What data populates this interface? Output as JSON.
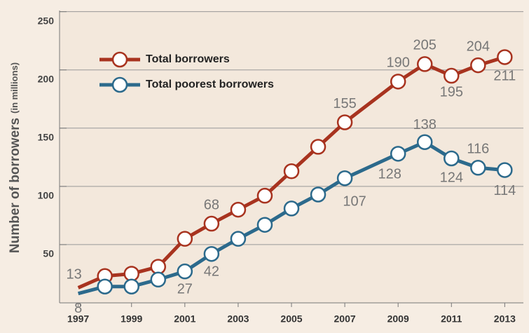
{
  "chart_data": {
    "type": "line",
    "ylabel": "Number of borrowers",
    "ylabel_unit": "(in millions)",
    "x": [
      1997,
      1998,
      1999,
      2000,
      2001,
      2002,
      2003,
      2004,
      2005,
      2006,
      2007,
      2009,
      2010,
      2011,
      2012,
      2013
    ],
    "series": [
      {
        "name": "Total borrowers",
        "color": "#a8331f",
        "values": [
          13,
          23,
          25,
          31,
          55,
          68,
          80,
          92,
          113,
          134,
          155,
          190,
          205,
          195,
          204,
          211
        ],
        "value_labels": [
          "13",
          null,
          null,
          null,
          null,
          "68",
          null,
          null,
          null,
          null,
          "155",
          "190",
          "205",
          "195",
          "204",
          "211"
        ]
      },
      {
        "name": "Total poorest borrowers",
        "color": "#2c6a8c",
        "values": [
          8,
          14,
          14,
          20,
          27,
          42,
          55,
          67,
          81,
          93,
          107,
          128,
          138,
          124,
          116,
          114
        ],
        "value_labels": [
          "8",
          "",
          null,
          null,
          "27",
          "42",
          null,
          null,
          null,
          null,
          "107",
          "128",
          "138",
          "124",
          "116",
          "114"
        ]
      }
    ],
    "xlim": [
      1996.3,
      2013.7
    ],
    "xticks": [
      1997,
      1999,
      2001,
      2003,
      2005,
      2007,
      2009,
      2011,
      2013
    ],
    "ylim": [
      0,
      251
    ],
    "yticks": [
      50,
      100,
      150,
      200,
      250
    ],
    "grid": true,
    "legend": "upper left"
  }
}
